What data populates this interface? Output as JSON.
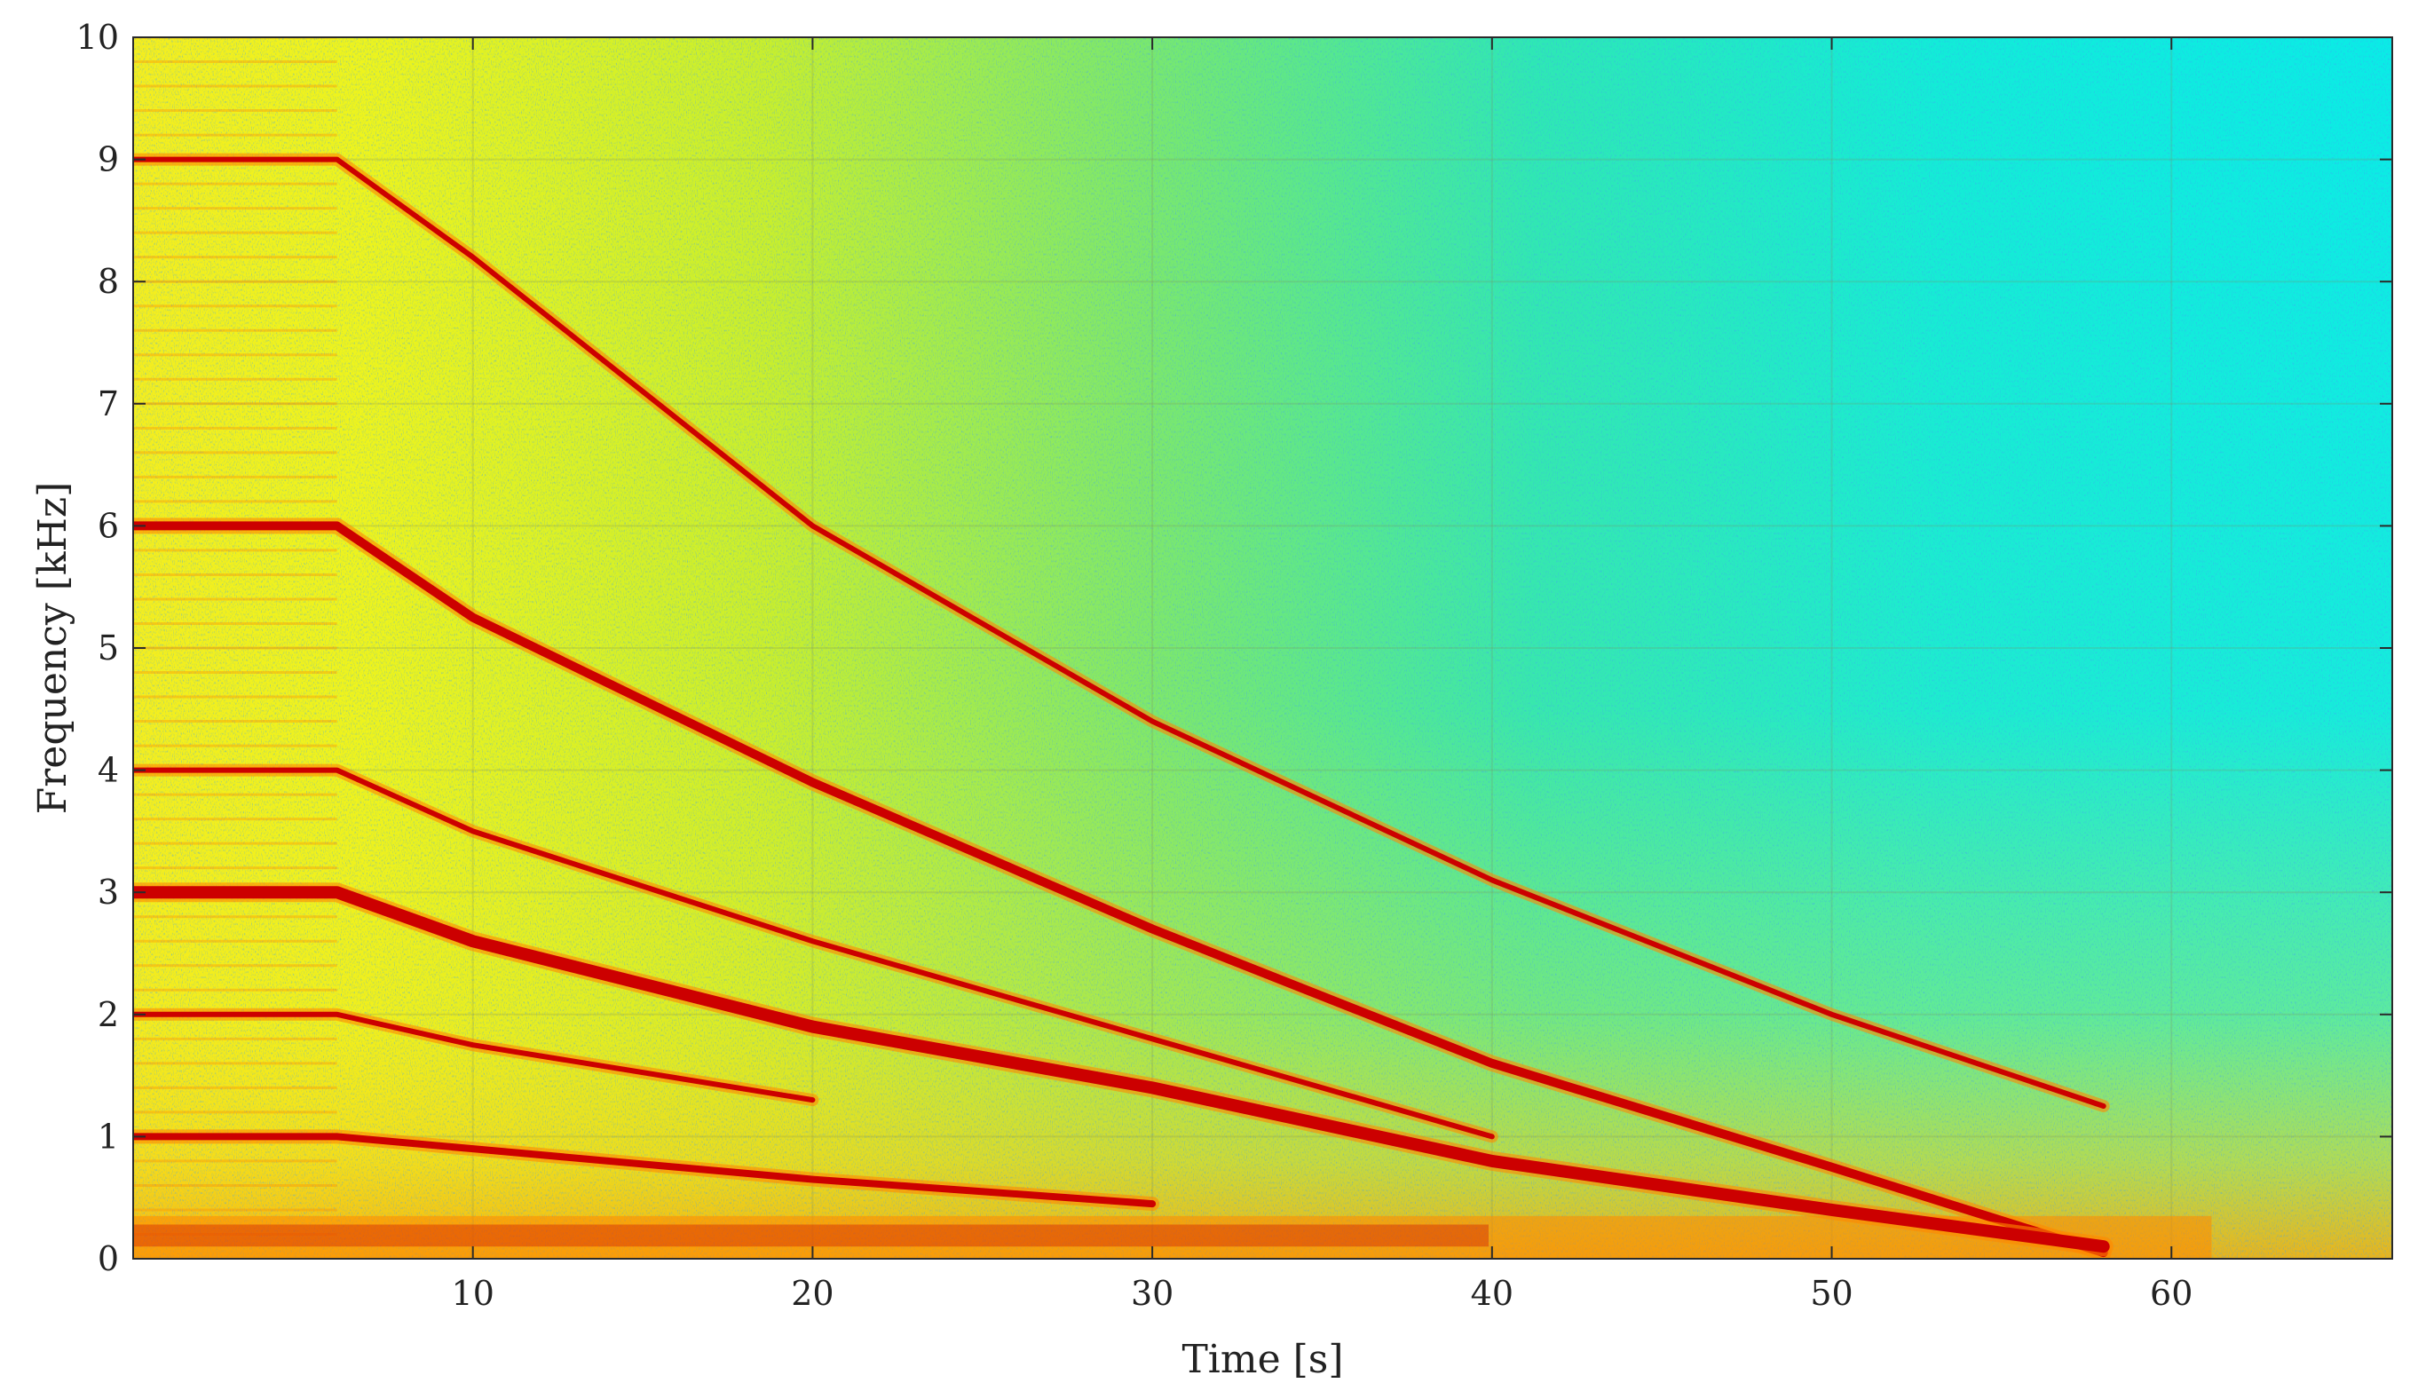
{
  "chart_data": {
    "type": "heatmap",
    "subtype": "spectrogram",
    "title": "",
    "xlabel": "Time [s]",
    "ylabel": "Frequency [kHz]",
    "xlim": [
      0,
      66.5
    ],
    "ylim": [
      0,
      10
    ],
    "xticks": [
      10,
      20,
      30,
      40,
      50,
      60
    ],
    "yticks": [
      0,
      1,
      2,
      3,
      4,
      5,
      6,
      7,
      8,
      9,
      10
    ],
    "grid": true,
    "colormap": "jet",
    "colors": {
      "high": "#cc0000",
      "mid_high": "#ff8800",
      "mid": "#f2f21a",
      "low": "#00e6e6",
      "min": "#1a4dff"
    },
    "series": [
      {
        "name": "",
        "x": [
          0,
          6,
          10,
          20,
          30,
          40,
          50,
          58
        ],
        "y": [
          9,
          9,
          8.2,
          6.0,
          4.4,
          3.1,
          2.0,
          1.25
        ]
      },
      {
        "name": "",
        "x": [
          0,
          6,
          10,
          20,
          30,
          40,
          50,
          58
        ],
        "y": [
          6,
          6,
          5.25,
          3.9,
          2.7,
          1.6,
          0.75,
          0.05
        ]
      },
      {
        "name": "",
        "x": [
          0,
          6,
          10,
          20,
          30,
          35,
          40
        ],
        "y": [
          4,
          4,
          3.5,
          2.6,
          1.8,
          1.4,
          1.0
        ]
      },
      {
        "name": "",
        "x": [
          0,
          6,
          10,
          20,
          30,
          40,
          50,
          58
        ],
        "y": [
          3,
          3,
          2.6,
          1.9,
          1.4,
          0.8,
          0.4,
          0.1
        ]
      },
      {
        "name": "",
        "x": [
          0,
          6,
          10,
          20
        ],
        "y": [
          2,
          2,
          1.75,
          1.3
        ]
      },
      {
        "name": "",
        "x": [
          0,
          6,
          10,
          20,
          30
        ],
        "y": [
          1,
          1,
          0.9,
          0.65,
          0.45
        ]
      }
    ]
  }
}
